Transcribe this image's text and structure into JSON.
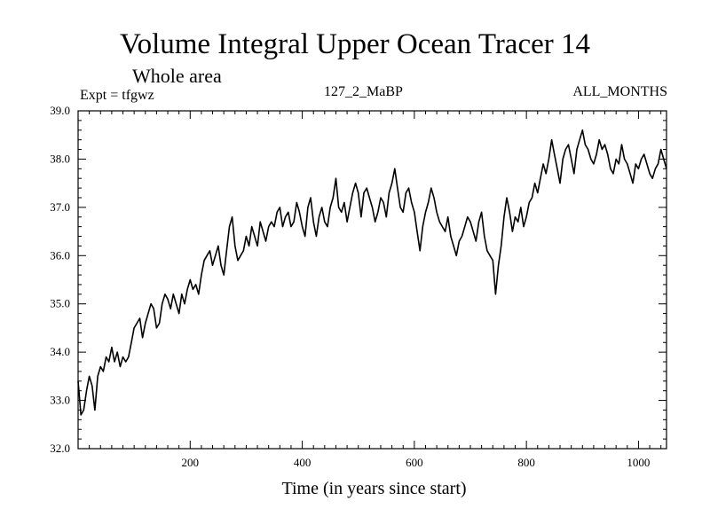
{
  "chart_data": {
    "type": "line",
    "title": "Volume Integral Upper Ocean Tracer 14",
    "subtitle": "Whole area",
    "experiment": "Expt = tfgwz",
    "run_label": "127_2_MaBP",
    "months_label": "ALL_MONTHS",
    "xlabel": "Time (in years since start)",
    "ylabel": "",
    "xlim": [
      0,
      1050
    ],
    "ylim": [
      32.0,
      39.0
    ],
    "x_ticks": [
      200,
      400,
      600,
      800,
      1000
    ],
    "y_ticks": [
      "32.0",
      "33.0",
      "34.0",
      "35.0",
      "36.0",
      "37.0",
      "38.0",
      "39.0"
    ],
    "grid": false,
    "series": [
      {
        "name": "Tracer 14",
        "color": "#000000",
        "x": [
          0,
          5,
          10,
          15,
          20,
          25,
          30,
          35,
          40,
          45,
          50,
          55,
          60,
          65,
          70,
          75,
          80,
          85,
          90,
          95,
          100,
          105,
          110,
          115,
          120,
          125,
          130,
          135,
          140,
          145,
          150,
          155,
          160,
          165,
          170,
          175,
          180,
          185,
          190,
          195,
          200,
          205,
          210,
          215,
          220,
          225,
          230,
          235,
          240,
          245,
          250,
          255,
          260,
          265,
          270,
          275,
          280,
          285,
          290,
          295,
          300,
          305,
          310,
          315,
          320,
          325,
          330,
          335,
          340,
          345,
          350,
          355,
          360,
          365,
          370,
          375,
          380,
          385,
          390,
          395,
          400,
          405,
          410,
          415,
          420,
          425,
          430,
          435,
          440,
          445,
          450,
          455,
          460,
          465,
          470,
          475,
          480,
          485,
          490,
          495,
          500,
          505,
          510,
          515,
          520,
          525,
          530,
          535,
          540,
          545,
          550,
          555,
          560,
          565,
          570,
          575,
          580,
          585,
          590,
          595,
          600,
          605,
          610,
          615,
          620,
          625,
          630,
          635,
          640,
          645,
          650,
          655,
          660,
          665,
          670,
          675,
          680,
          685,
          690,
          695,
          700,
          705,
          710,
          715,
          720,
          725,
          730,
          735,
          740,
          745,
          750,
          755,
          760,
          765,
          770,
          775,
          780,
          785,
          790,
          795,
          800,
          805,
          810,
          815,
          820,
          825,
          830,
          835,
          840,
          845,
          850,
          855,
          860,
          865,
          870,
          875,
          880,
          885,
          890,
          895,
          900,
          905,
          910,
          915,
          920,
          925,
          930,
          935,
          940,
          945,
          950,
          955,
          960,
          965,
          970,
          975,
          980,
          985,
          990,
          995,
          1000,
          1005,
          1010,
          1015,
          1020,
          1025,
          1030,
          1035,
          1040,
          1045,
          1050
        ],
        "y": [
          33.4,
          32.7,
          32.8,
          33.2,
          33.5,
          33.3,
          32.8,
          33.5,
          33.7,
          33.6,
          33.9,
          33.8,
          34.1,
          33.8,
          34.0,
          33.7,
          33.9,
          33.8,
          33.9,
          34.2,
          34.5,
          34.6,
          34.7,
          34.3,
          34.6,
          34.8,
          35.0,
          34.9,
          34.5,
          34.6,
          35.0,
          35.2,
          35.1,
          34.9,
          35.2,
          35.0,
          34.8,
          35.2,
          35.0,
          35.3,
          35.5,
          35.3,
          35.4,
          35.2,
          35.6,
          35.9,
          36.0,
          36.1,
          35.8,
          36.0,
          36.2,
          35.8,
          35.6,
          36.1,
          36.6,
          36.8,
          36.2,
          35.9,
          36.0,
          36.1,
          36.4,
          36.2,
          36.6,
          36.4,
          36.2,
          36.7,
          36.5,
          36.3,
          36.6,
          36.7,
          36.6,
          36.9,
          37.0,
          36.6,
          36.8,
          36.9,
          36.6,
          36.7,
          37.1,
          36.9,
          36.6,
          36.4,
          37.0,
          37.2,
          36.7,
          36.4,
          36.8,
          37.0,
          36.7,
          36.6,
          37.0,
          37.2,
          37.6,
          37.0,
          36.9,
          37.1,
          36.7,
          37.0,
          37.3,
          37.5,
          37.3,
          36.8,
          37.3,
          37.4,
          37.2,
          37.0,
          36.7,
          36.9,
          37.2,
          37.1,
          36.8,
          37.3,
          37.5,
          37.8,
          37.4,
          37.0,
          36.9,
          37.3,
          37.4,
          37.1,
          36.9,
          36.5,
          36.1,
          36.6,
          36.9,
          37.1,
          37.4,
          37.2,
          36.9,
          36.7,
          36.6,
          36.5,
          36.8,
          36.4,
          36.2,
          36.0,
          36.3,
          36.4,
          36.6,
          36.8,
          36.7,
          36.5,
          36.3,
          36.7,
          36.9,
          36.4,
          36.1,
          36.0,
          35.9,
          35.2,
          35.8,
          36.2,
          36.8,
          37.2,
          36.9,
          36.5,
          36.8,
          36.7,
          37.0,
          36.6,
          36.8,
          37.1,
          37.2,
          37.5,
          37.3,
          37.6,
          37.9,
          37.7,
          38.0,
          38.4,
          38.1,
          37.8,
          37.5,
          38.0,
          38.2,
          38.3,
          38.0,
          37.7,
          38.2,
          38.4,
          38.6,
          38.3,
          38.2,
          38.0,
          37.9,
          38.1,
          38.4,
          38.2,
          38.3,
          38.1,
          37.8,
          37.7,
          38.0,
          37.9,
          38.3,
          38.0,
          37.9,
          37.7,
          37.5,
          37.9,
          37.8,
          38.0,
          38.1,
          37.9,
          37.7,
          37.6,
          37.8,
          37.9,
          38.2,
          38.0,
          37.8
        ]
      }
    ]
  }
}
